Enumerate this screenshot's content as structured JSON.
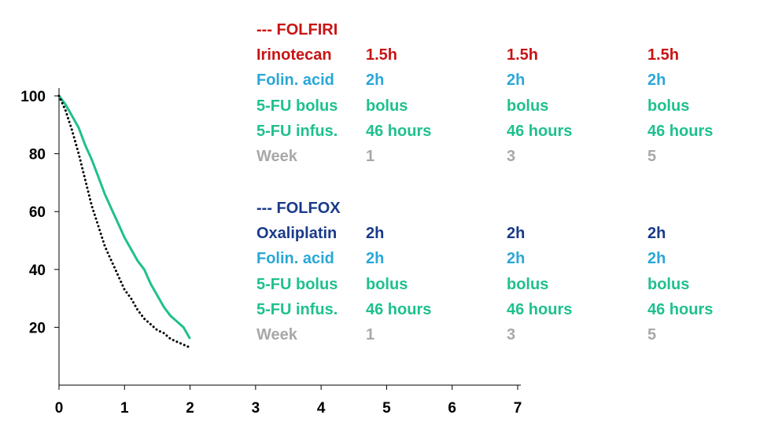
{
  "chart_data": {
    "type": "line",
    "title": "",
    "xlabel": "",
    "ylabel": "",
    "xlim": [
      0,
      7
    ],
    "ylim": [
      0,
      100
    ],
    "x_ticks": [
      "0",
      "1",
      "2",
      "3",
      "4",
      "5",
      "6",
      "7"
    ],
    "y_ticks": [
      "20",
      "40",
      "60",
      "80",
      "100"
    ],
    "grid": false,
    "series": [
      {
        "color": "#1fc08e",
        "style": "solid",
        "points": [
          [
            0,
            100
          ],
          [
            0.1,
            97
          ],
          [
            0.2,
            93
          ],
          [
            0.3,
            89
          ],
          [
            0.4,
            83
          ],
          [
            0.5,
            78
          ],
          [
            0.6,
            72
          ],
          [
            0.7,
            66
          ],
          [
            0.8,
            61
          ],
          [
            0.9,
            56
          ],
          [
            1.0,
            51
          ],
          [
            1.1,
            47
          ],
          [
            1.2,
            43
          ],
          [
            1.3,
            40
          ],
          [
            1.4,
            35
          ],
          [
            1.5,
            31
          ],
          [
            1.6,
            27
          ],
          [
            1.7,
            24
          ],
          [
            1.8,
            22
          ],
          [
            1.9,
            20
          ],
          [
            2.0,
            16
          ]
        ]
      },
      {
        "color": "#000000",
        "style": "dotted",
        "points": [
          [
            0,
            100
          ],
          [
            0.1,
            95
          ],
          [
            0.2,
            88
          ],
          [
            0.3,
            80
          ],
          [
            0.4,
            71
          ],
          [
            0.5,
            62
          ],
          [
            0.6,
            55
          ],
          [
            0.7,
            48
          ],
          [
            0.8,
            43
          ],
          [
            0.9,
            38
          ],
          [
            1.0,
            33
          ],
          [
            1.1,
            30
          ],
          [
            1.2,
            26
          ],
          [
            1.3,
            23
          ],
          [
            1.4,
            21
          ],
          [
            1.5,
            19
          ],
          [
            1.6,
            18
          ],
          [
            1.7,
            16
          ],
          [
            1.8,
            15
          ],
          [
            1.9,
            14
          ],
          [
            2.0,
            13
          ]
        ]
      }
    ]
  },
  "colors": {
    "folfiri_red": "#c81414",
    "folin_blue": "#2aa7d8",
    "fu_green": "#1fc08e",
    "week_gray": "#a8a8a8",
    "folfox_navy": "#1a3a8a"
  },
  "folfiri": {
    "header": "--- FOLFIRI",
    "rows": [
      {
        "label": "Irinotecan",
        "v1": "1.5h",
        "v2": "1.5h",
        "v3": "1.5h"
      },
      {
        "label": "Folin. acid",
        "v1": "2h",
        "v2": "2h",
        "v3": "2h"
      },
      {
        "label": "5-FU bolus",
        "v1": "bolus",
        "v2": "bolus",
        "v3": "bolus"
      },
      {
        "label": "5-FU infus.",
        "v1": "46 hours",
        "v2": "46 hours",
        "v3": "46 hours"
      },
      {
        "label": "Week",
        "v1": "1",
        "v2": "3",
        "v3": "5"
      }
    ]
  },
  "folfox": {
    "header": "--- FOLFOX",
    "rows": [
      {
        "label": "Oxaliplatin",
        "v1": "2h",
        "v2": "2h",
        "v3": "2h"
      },
      {
        "label": "Folin. acid",
        "v1": "2h",
        "v2": "2h",
        "v3": "2h"
      },
      {
        "label": "5-FU bolus",
        "v1": "bolus",
        "v2": "bolus",
        "v3": "bolus"
      },
      {
        "label": "5-FU infus.",
        "v1": "46 hours",
        "v2": "46 hours",
        "v3": "46 hours"
      },
      {
        "label": "Week",
        "v1": "1",
        "v2": "3",
        "v3": "5"
      }
    ]
  }
}
